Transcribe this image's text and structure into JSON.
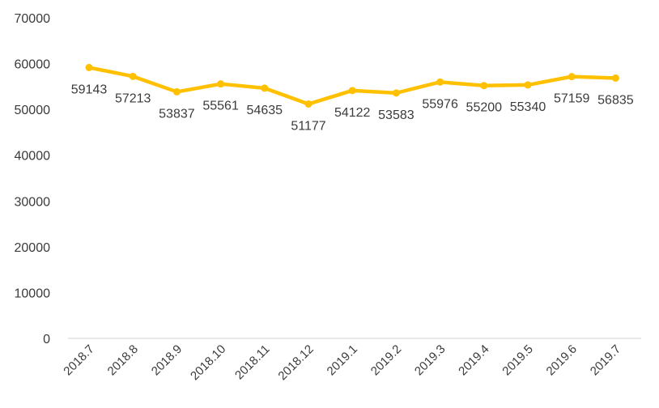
{
  "chart_data": {
    "type": "line",
    "title": "",
    "xlabel": "",
    "ylabel": "",
    "categories": [
      "2018.7",
      "2018.8",
      "2018.9",
      "2018.10",
      "2018.11",
      "2018.12",
      "2019.1",
      "2019.2",
      "2019.3",
      "2019.4",
      "2019.5",
      "2019.6",
      "2019.7"
    ],
    "series": [
      {
        "values": [
          59143,
          57213,
          53837,
          55561,
          54635,
          51177,
          54122,
          53583,
          55976,
          55200,
          55340,
          57159,
          56835
        ],
        "color": "#FFC000"
      }
    ],
    "data_labels": [
      "59143",
      "57213",
      "53837",
      "55561",
      "54635",
      "51177",
      "54122",
      "53583",
      "55976",
      "55200",
      "55340",
      "57159",
      "56835"
    ],
    "ylim": [
      0,
      70000
    ],
    "yticks": [
      0,
      10000,
      20000,
      30000,
      40000,
      50000,
      60000,
      70000
    ],
    "ytick_labels": [
      "0",
      "10000",
      "20000",
      "30000",
      "40000",
      "50000",
      "60000",
      "70000"
    ],
    "grid": false,
    "legend": "none",
    "axis_color": "#d9d9d9",
    "text_color": "#3b3b3b"
  }
}
